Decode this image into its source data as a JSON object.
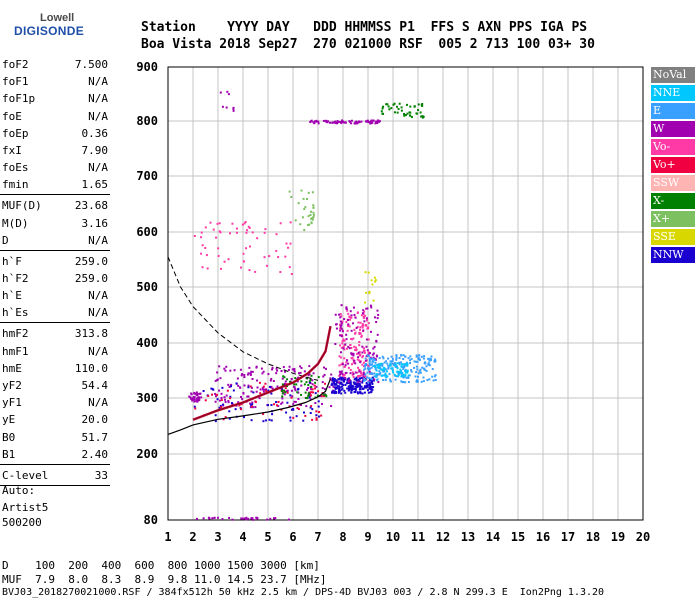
{
  "logo": {
    "top": "Lowell",
    "bottom": "DIGISONDE"
  },
  "header": {
    "line1": "Station    YYYY DAY   DDD HHMMSS P1  FFS S AXN PPS IGA PS",
    "line2": "Boa Vista 2018 Sep27  270 021000 RSF  005 2 713 100 03+ 30"
  },
  "params": [
    {
      "name": "foF2",
      "value": "7.500"
    },
    {
      "name": "foF1",
      "value": "N/A"
    },
    {
      "name": "foF1p",
      "value": "N/A"
    },
    {
      "name": "foE",
      "value": "N/A"
    },
    {
      "name": "foEp",
      "value": "0.36"
    },
    {
      "name": "fxI",
      "value": "7.90"
    },
    {
      "name": "foEs",
      "value": "N/A"
    },
    {
      "name": "fmin",
      "value": "1.65"
    },
    {
      "name": "MUF(D)",
      "value": "23.68"
    },
    {
      "name": "M(D)",
      "value": "3.16"
    },
    {
      "name": "D",
      "value": "N/A"
    },
    {
      "name": "h`F",
      "value": "259.0"
    },
    {
      "name": "h`F2",
      "value": "259.0"
    },
    {
      "name": "h`E",
      "value": "N/A"
    },
    {
      "name": "h`Es",
      "value": "N/A"
    },
    {
      "name": "hmF2",
      "value": "313.8"
    },
    {
      "name": "hmF1",
      "value": "N/A"
    },
    {
      "name": "hmE",
      "value": "110.0"
    },
    {
      "name": "yF2",
      "value": "54.4"
    },
    {
      "name": "yF1",
      "value": "N/A"
    },
    {
      "name": "yE",
      "value": "20.0"
    },
    {
      "name": "B0",
      "value": "51.7"
    },
    {
      "name": "B1",
      "value": "2.40"
    },
    {
      "name": "C-level",
      "value": "33"
    }
  ],
  "autoscaling": {
    "line1": "Auto:",
    "line2": "Artist5",
    "line3": "500200"
  },
  "footer": {
    "d_row": "D    100  200  400  600  800 1000 1500 3000 [km]",
    "muf_row": "MUF  7.9  8.0  8.3  8.9  9.8 11.0 14.5 23.7 [MHz]",
    "info": "BVJ03_2018270021000.RSF / 384fx512h 50 kHz 2.5 km / DPS-4D BVJ03 003 / 2.8 N 299.3 E  Ion2Png 1.3.20"
  },
  "legend": [
    {
      "label": "NoVal",
      "color": "#808080"
    },
    {
      "label": "NNE",
      "color": "#00c8ff"
    },
    {
      "label": "E",
      "color": "#3aa0ff"
    },
    {
      "label": "W",
      "color": "#a000b0"
    },
    {
      "label": "Vo-",
      "color": "#ff3aa6"
    },
    {
      "label": "Vo+",
      "color": "#f00040"
    },
    {
      "label": "SSW",
      "color": "#ffb4b4"
    },
    {
      "label": "X-",
      "color": "#008000"
    },
    {
      "label": "X+",
      "color": "#7cc060"
    },
    {
      "label": "SSE",
      "color": "#d8d800"
    },
    {
      "label": "NNW",
      "color": "#1a00d0"
    }
  ],
  "chart_data": {
    "type": "scatter",
    "x_ticks": [
      1,
      2,
      3,
      4,
      5,
      6,
      7,
      8,
      9,
      10,
      11,
      12,
      13,
      14,
      15,
      16,
      17,
      18,
      19,
      20
    ],
    "y_ticks": [
      80,
      200,
      300,
      400,
      500,
      600,
      700,
      800,
      900
    ],
    "xlim": [
      1,
      20
    ],
    "ylim": [
      80,
      900
    ],
    "grid": true,
    "xlabel": "",
    "ylabel": "",
    "profile_curve": {
      "x": [
        1.0,
        1.5,
        2.0,
        3.0,
        4.0,
        5.0,
        5.8,
        6.5,
        7.0,
        7.3,
        7.5
      ],
      "y": [
        235,
        243,
        252,
        262,
        268,
        275,
        283,
        292,
        302,
        312,
        335
      ]
    },
    "o_trace_curve": {
      "x": [
        2.0,
        3.0,
        4.0,
        5.0,
        6.0,
        6.6,
        7.0,
        7.3,
        7.5
      ],
      "y": [
        261,
        278,
        292,
        310,
        328,
        345,
        362,
        385,
        430
      ]
    },
    "dashed_curve": {
      "x": [
        1.0,
        1.5,
        2.0,
        3.0,
        4.0,
        5.0,
        6.0,
        7.0
      ],
      "y": [
        555,
        500,
        465,
        418,
        384,
        362,
        345,
        332
      ]
    },
    "echo_clusters": [
      {
        "color": "#a000b0",
        "x": [
          1.8,
          2.3
        ],
        "y": [
          295,
          312
        ],
        "n": 40
      },
      {
        "color": "#a000b0",
        "x": [
          2.8,
          7.6
        ],
        "y": [
          285,
          360
        ],
        "n": 180
      },
      {
        "color": "#1a00d0",
        "x": [
          2.0,
          7.2
        ],
        "y": [
          260,
          330
        ],
        "n": 70
      },
      {
        "color": "#f00040",
        "x": [
          2.0,
          7.3
        ],
        "y": [
          262,
          330
        ],
        "n": 60
      },
      {
        "color": "#008000",
        "x": [
          5.5,
          7.5
        ],
        "y": [
          300,
          345
        ],
        "n": 40
      },
      {
        "color": "#1a00d0",
        "x": [
          7.5,
          9.2
        ],
        "y": [
          310,
          340
        ],
        "n": 200
      },
      {
        "color": "#ff3aa6",
        "x": [
          7.8,
          9.0
        ],
        "y": [
          340,
          460
        ],
        "n": 150
      },
      {
        "color": "#a000b0",
        "x": [
          7.6,
          9.4
        ],
        "y": [
          330,
          470
        ],
        "n": 120
      },
      {
        "color": "#3aa0ff",
        "x": [
          8.8,
          11.7
        ],
        "y": [
          330,
          380
        ],
        "n": 220
      },
      {
        "color": "#00c8ff",
        "x": [
          9.2,
          10.6
        ],
        "y": [
          340,
          365
        ],
        "n": 60
      },
      {
        "color": "#d8d800",
        "x": [
          8.8,
          9.3
        ],
        "y": [
          470,
          530
        ],
        "n": 12
      },
      {
        "color": "#ff3aa6",
        "x": [
          2.0,
          6.0
        ],
        "y": [
          525,
          620
        ],
        "n": 60
      },
      {
        "color": "#7cc060",
        "x": [
          5.8,
          6.8
        ],
        "y": [
          605,
          685
        ],
        "n": 30
      },
      {
        "color": "#a000b0",
        "x": [
          6.6,
          9.5
        ],
        "y": [
          797,
          803
        ],
        "n": 80
      },
      {
        "color": "#008000",
        "x": [
          9.5,
          11.2
        ],
        "y": [
          808,
          835
        ],
        "n": 45
      },
      {
        "color": "#a000b0",
        "x": [
          3.0,
          3.6
        ],
        "y": [
          820,
          860
        ],
        "n": 8
      },
      {
        "color": "#a000b0",
        "x": [
          1.8,
          5.8
        ],
        "y": [
          82,
          86
        ],
        "n": 30
      }
    ]
  }
}
